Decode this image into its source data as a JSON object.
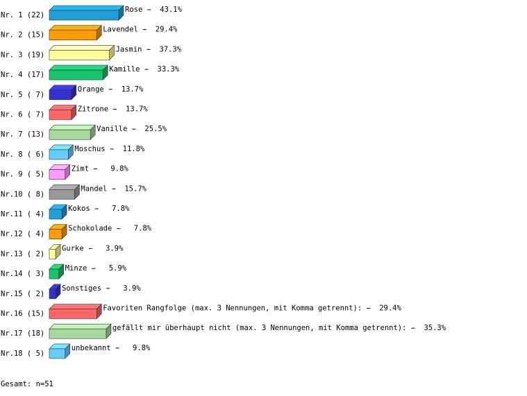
{
  "chart_data": {
    "type": "bar3d",
    "row_labels": [
      "Nr. 1 (22)",
      "Nr. 2 (15)",
      "Nr. 3 (19)",
      "Nr. 4 (17)",
      "Nr. 5 ( 7)",
      "Nr. 6 ( 7)",
      "Nr. 7 (13)",
      "Nr. 8 ( 6)",
      "Nr. 9 ( 5)",
      "Nr.10 ( 8)",
      "Nr.11 ( 4)",
      "Nr.12 ( 4)",
      "Nr.13 ( 2)",
      "Nr.14 ( 3)",
      "Nr.15 ( 2)",
      "Nr.16 (15)",
      "Nr.17 (18)",
      "Nr.18 ( 5)"
    ],
    "categories": [
      "Rose",
      "Lavendel",
      "Jasmin",
      "Kamille",
      "Orange",
      "Zitrone",
      "Vanille",
      "Moschus",
      "Zimt",
      "Mandel",
      "Kokos",
      "Schokolade",
      "Gurke",
      "Minze",
      "Sonstiges",
      "Favoriten Rangfolge (max. 3 Nennungen, mit Komma getrennt):",
      "gefällt mir überhaupt nicht (max. 3 Nennungen, mit Komma getrennt):",
      "unbekannt"
    ],
    "values": [
      43.1,
      29.4,
      37.3,
      33.3,
      13.7,
      13.7,
      25.5,
      11.8,
      9.8,
      15.7,
      7.8,
      7.8,
      3.9,
      5.9,
      3.9,
      29.4,
      35.3,
      9.8
    ],
    "value_labels": [
      "43.1%",
      "29.4%",
      "37.3%",
      "33.3%",
      "13.7%",
      "13.7%",
      "25.5%",
      "11.8%",
      "9.8%",
      "15.7%",
      "7.8%",
      "7.8%",
      "3.9%",
      "5.9%",
      "3.9%",
      "29.4%",
      "35.3%",
      "9.8%"
    ],
    "colors": [
      "#1e9fd8",
      "#ff9c00",
      "#ffff99",
      "#19c36b",
      "#3333cc",
      "#ff6666",
      "#a8d8a0",
      "#66ccff",
      "#ff99ff",
      "#999999",
      "#1e9fd8",
      "#ff9c00",
      "#ffff99",
      "#19c36b",
      "#3333cc",
      "#ff6666",
      "#a8d8a0",
      "#66ccff"
    ],
    "footer": "Gesamt: n=51"
  }
}
